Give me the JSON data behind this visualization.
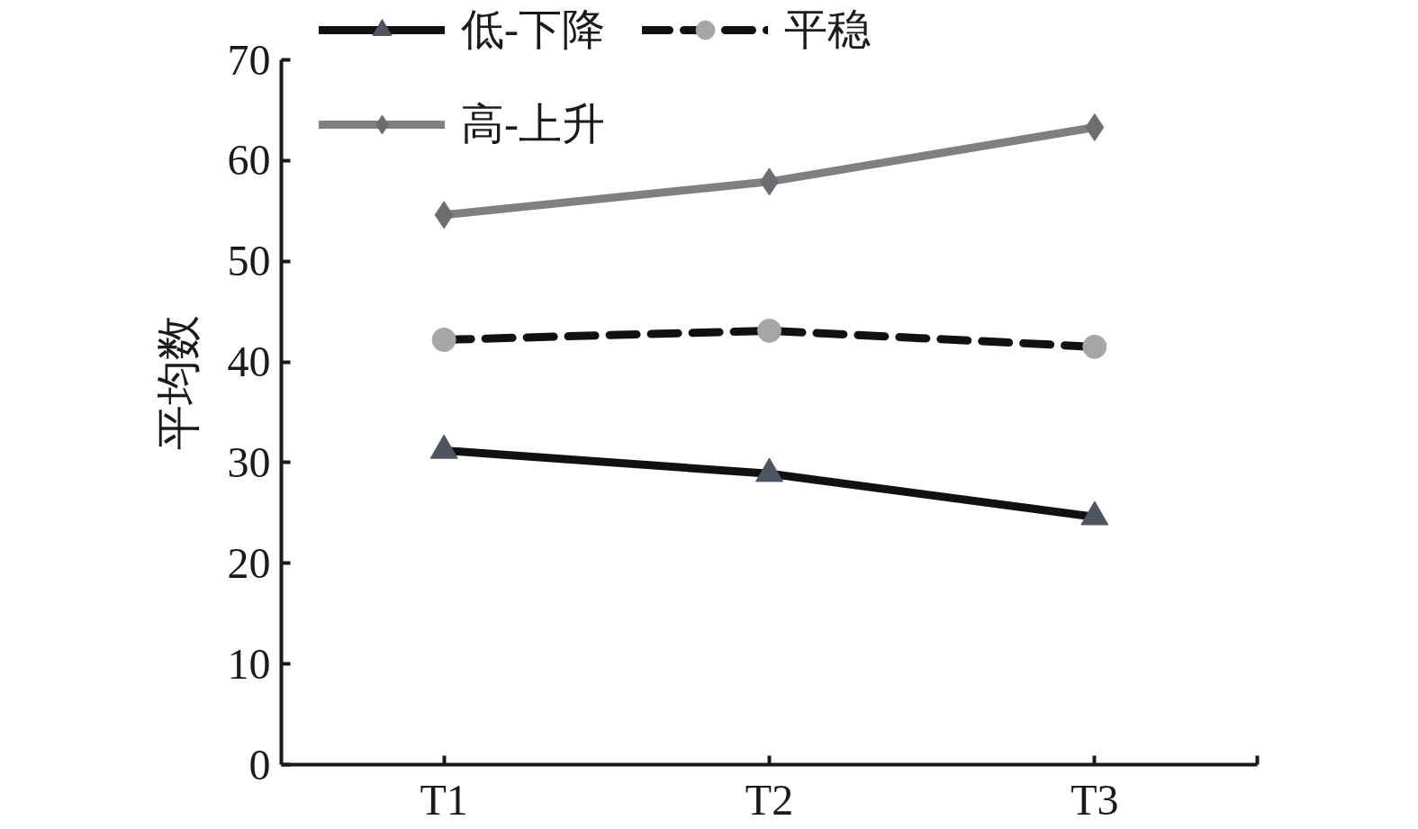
{
  "chart_data": {
    "type": "line",
    "categories": [
      "T1",
      "T2",
      "T3"
    ],
    "ylabel": "平均数",
    "ylim": [
      0,
      70
    ],
    "yticks": [
      0,
      10,
      20,
      30,
      40,
      50,
      60,
      70
    ],
    "legend": "top left",
    "series": [
      {
        "name": "低-下降",
        "color": "#111111",
        "colors": [
          "#4e5560",
          "#4e5560",
          "#4e5560"
        ],
        "marker": "triangle",
        "line_style": "solid",
        "values": [
          31.2,
          28.9,
          24.6
        ]
      },
      {
        "name": "平稳",
        "color": "#111111",
        "colors": [
          "#a6a6a6",
          "#a6a6a6",
          "#a6a6a6"
        ],
        "marker": "circle",
        "line_style": "dashed",
        "values": [
          42.2,
          43.1,
          41.5
        ]
      },
      {
        "name": "高-上升",
        "color": "#808080",
        "colors": [
          "#6b6d70",
          "#6b6d70",
          "#6b6d70"
        ],
        "marker": "diamond",
        "line_style": "solid",
        "values": [
          54.6,
          57.9,
          63.3
        ]
      }
    ]
  }
}
